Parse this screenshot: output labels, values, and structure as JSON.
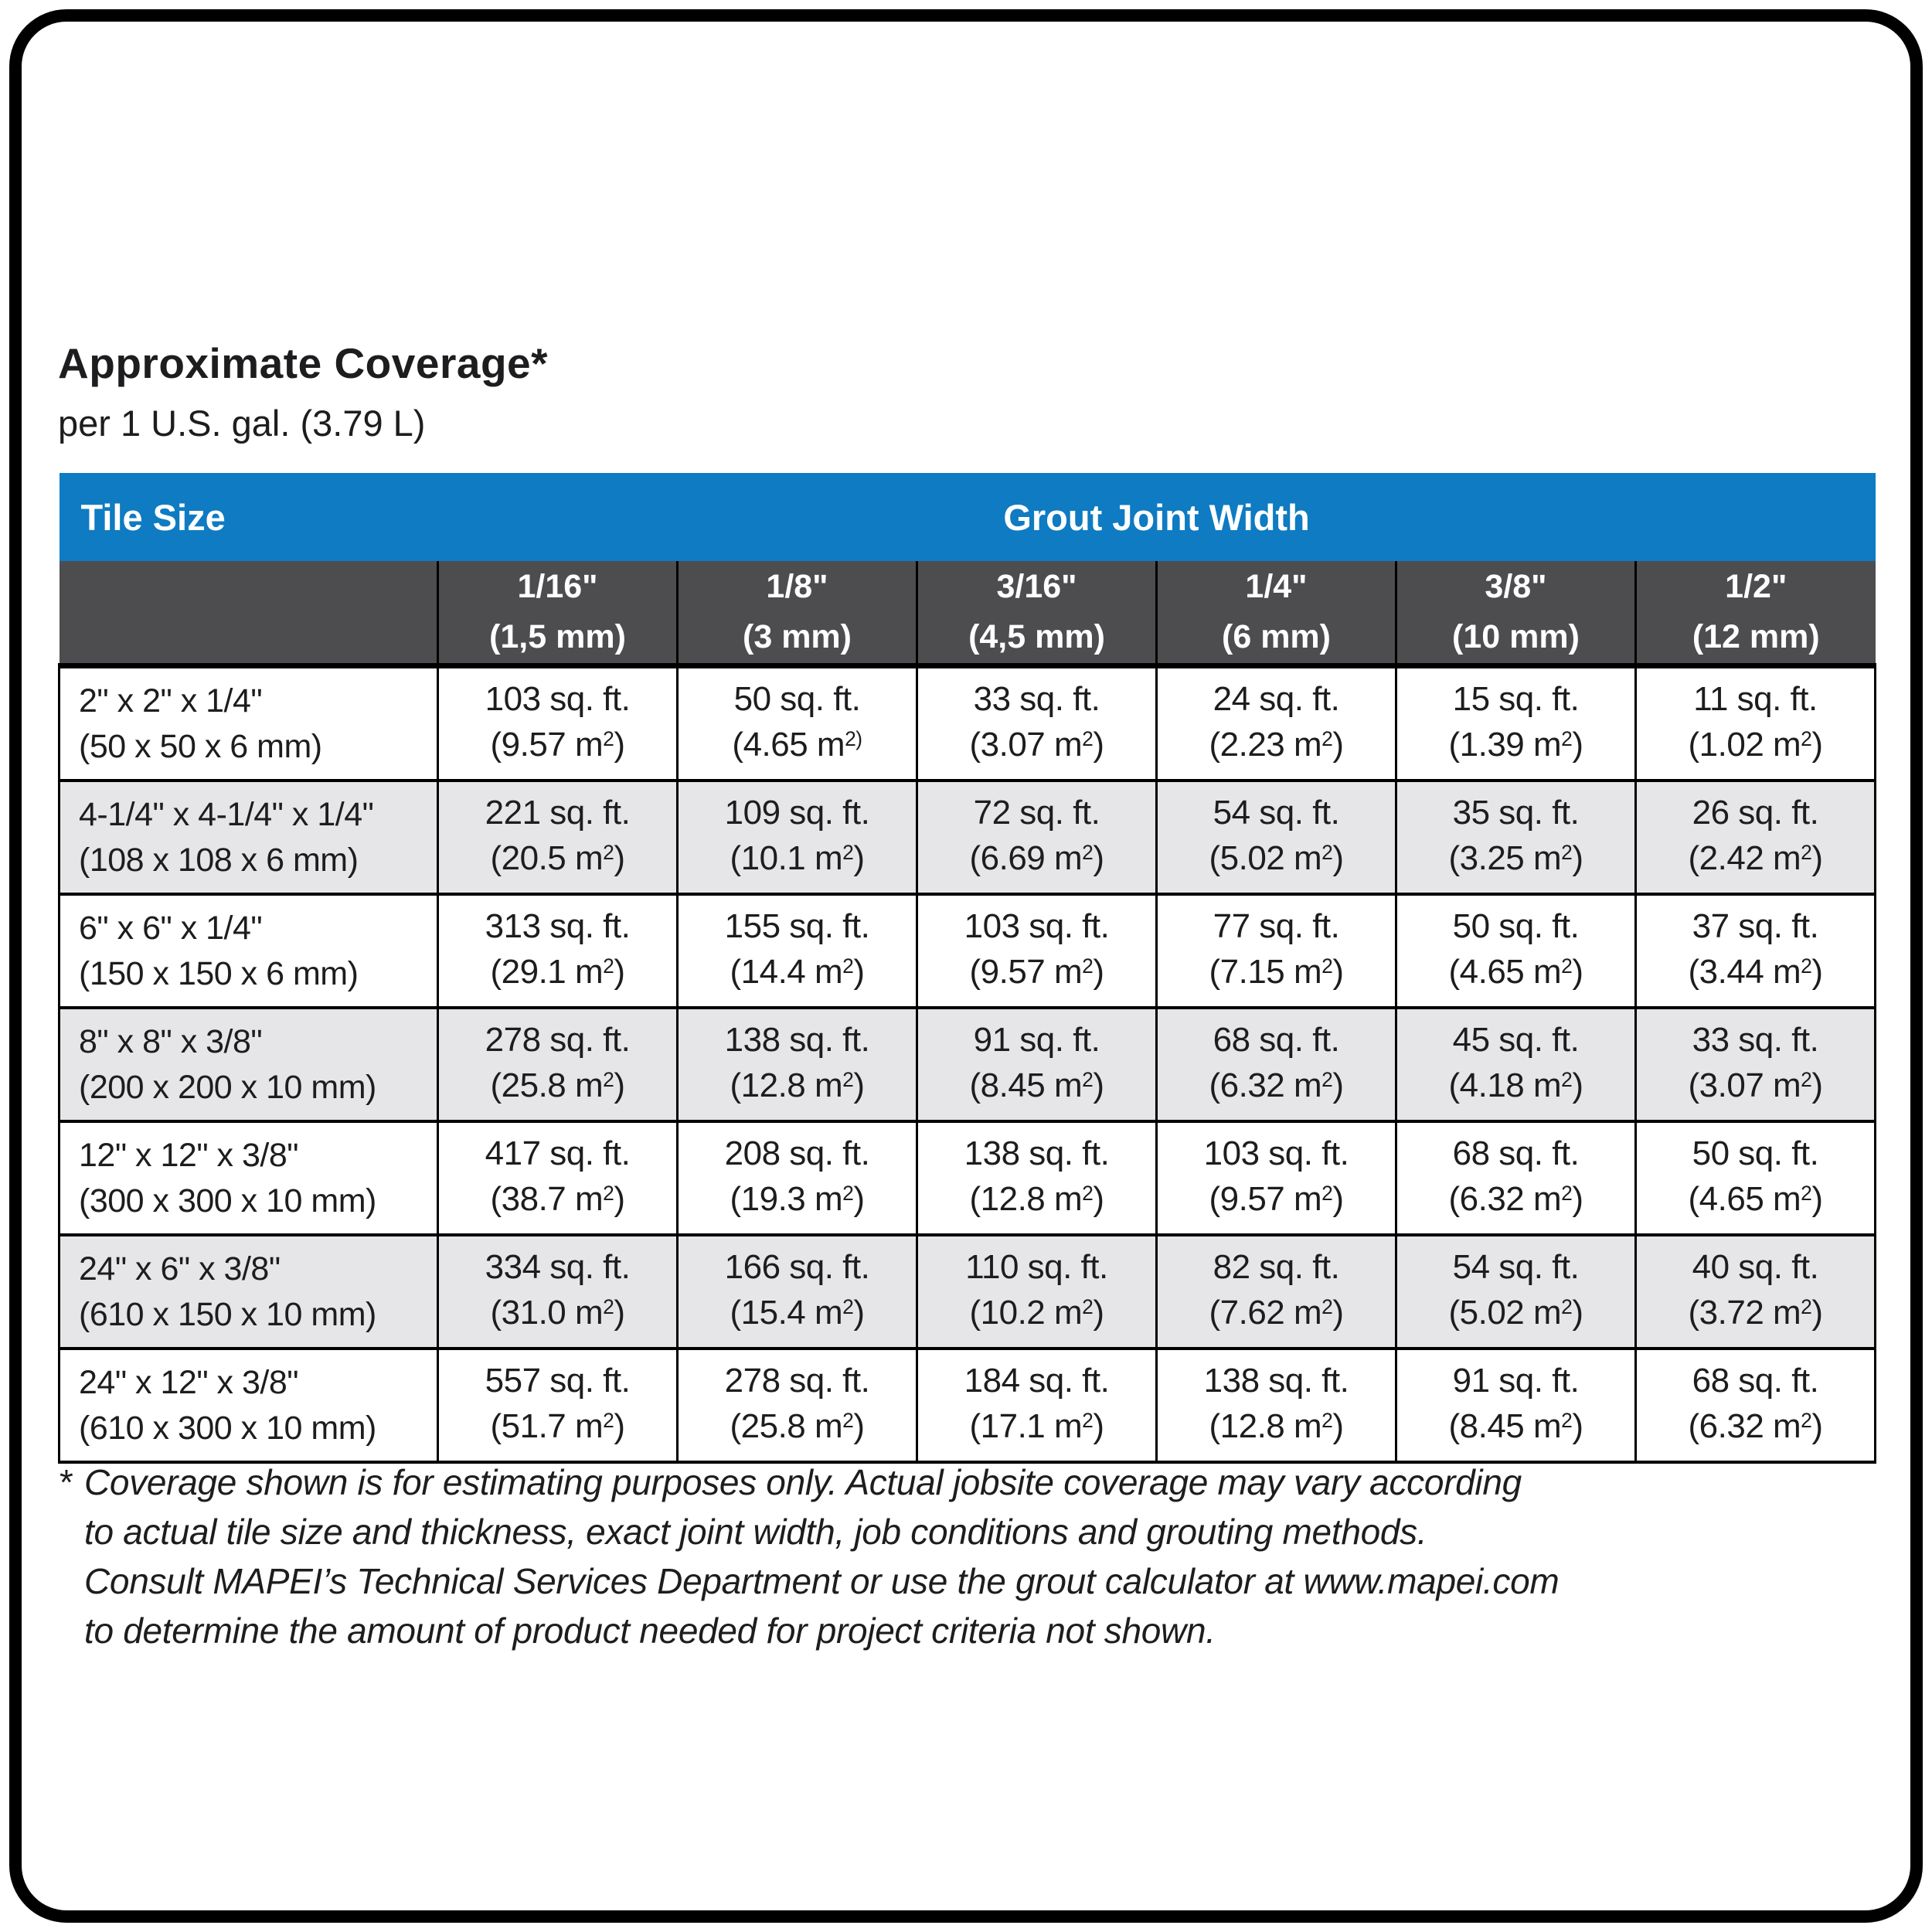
{
  "page": {
    "title": "Approximate Coverage*",
    "subtitle": "per 1 U.S. gal. (3.79 L)"
  },
  "table": {
    "tile_size_label": "Tile Size",
    "grout_joint_width_label": "Grout Joint Width",
    "columns": [
      {
        "fraction": "1/16\"",
        "mm": "(1,5 mm)"
      },
      {
        "fraction": "1/8\"",
        "mm": "(3 mm)"
      },
      {
        "fraction": "3/16\"",
        "mm": "(4,5 mm)"
      },
      {
        "fraction": "1/4\"",
        "mm": "(6 mm)"
      },
      {
        "fraction": "3/8\"",
        "mm": "(10 mm)"
      },
      {
        "fraction": "1/2\"",
        "mm": "(12 mm)"
      }
    ],
    "units": {
      "sqft_suffix": " sq. ft.",
      "m2_open": "(",
      "m2_unit": " m",
      "m2_sup": "2",
      "m2_close": ")"
    },
    "typo_cell": {
      "row": 0,
      "col": 1,
      "sup": "2)",
      "close": ""
    },
    "rows": [
      {
        "tile_in": "2\" x 2\" x 1/4\"",
        "tile_mm": "(50 x 50 x 6 mm)",
        "sqft": [
          "103",
          "50",
          "33",
          "24",
          "15",
          "11"
        ],
        "m2": [
          "9.57",
          "4.65",
          "3.07",
          "2.23",
          "1.39",
          "1.02"
        ]
      },
      {
        "tile_in": "4-1/4\" x 4-1/4\" x 1/4\"",
        "tile_mm": "(108 x 108 x 6 mm)",
        "sqft": [
          "221",
          "109",
          "72",
          "54",
          "35",
          "26"
        ],
        "m2": [
          "20.5",
          "10.1",
          "6.69",
          "5.02",
          "3.25",
          "2.42"
        ]
      },
      {
        "tile_in": "6\" x 6\" x 1/4\"",
        "tile_mm": "(150 x 150 x 6 mm)",
        "sqft": [
          "313",
          "155",
          "103",
          "77",
          "50",
          "37"
        ],
        "m2": [
          "29.1",
          "14.4",
          "9.57",
          "7.15",
          "4.65",
          "3.44"
        ]
      },
      {
        "tile_in": "8\" x 8\" x 3/8\"",
        "tile_mm": "(200 x 200 x 10 mm)",
        "sqft": [
          "278",
          "138",
          "91",
          "68",
          "45",
          "33"
        ],
        "m2": [
          "25.8",
          "12.8",
          "8.45",
          "6.32",
          "4.18",
          "3.07"
        ]
      },
      {
        "tile_in": "12\" x 12\" x 3/8\"",
        "tile_mm": "(300 x 300 x 10 mm)",
        "sqft": [
          "417",
          "208",
          "138",
          "103",
          "68",
          "50"
        ],
        "m2": [
          "38.7",
          "19.3",
          "12.8",
          "9.57",
          "6.32",
          "4.65"
        ]
      },
      {
        "tile_in": "24\" x 6\" x 3/8\"",
        "tile_mm": "(610 x 150 x 10 mm)",
        "sqft": [
          "334",
          "166",
          "110",
          "82",
          "54",
          "40"
        ],
        "m2": [
          "31.0",
          "15.4",
          "10.2",
          "7.62",
          "5.02",
          "3.72"
        ]
      },
      {
        "tile_in": "24\" x 12\" x 3/8\"",
        "tile_mm": "(610 x 300 x 10 mm)",
        "sqft": [
          "557",
          "278",
          "184",
          "138",
          "91",
          "68"
        ],
        "m2": [
          "51.7",
          "25.8",
          "17.1",
          "12.8",
          "8.45",
          "6.32"
        ]
      }
    ]
  },
  "footnote": {
    "marker": "*",
    "lines": [
      "Coverage shown is for estimating purposes only. Actual jobsite coverage may vary according",
      "to actual tile size and thickness, exact joint width, job conditions and grouting methods.",
      "Consult MAPEI’s Technical Services Department or use the grout calculator at www.mapei.com",
      "to determine the amount of product needed for project criteria not shown."
    ]
  },
  "colors": {
    "header_blue": "#0e7bc2",
    "subheader_gray": "#4d4d50",
    "row_stripe_gray": "#e6e6e8",
    "border_black": "#000000",
    "text_black": "#1d1d1f"
  }
}
